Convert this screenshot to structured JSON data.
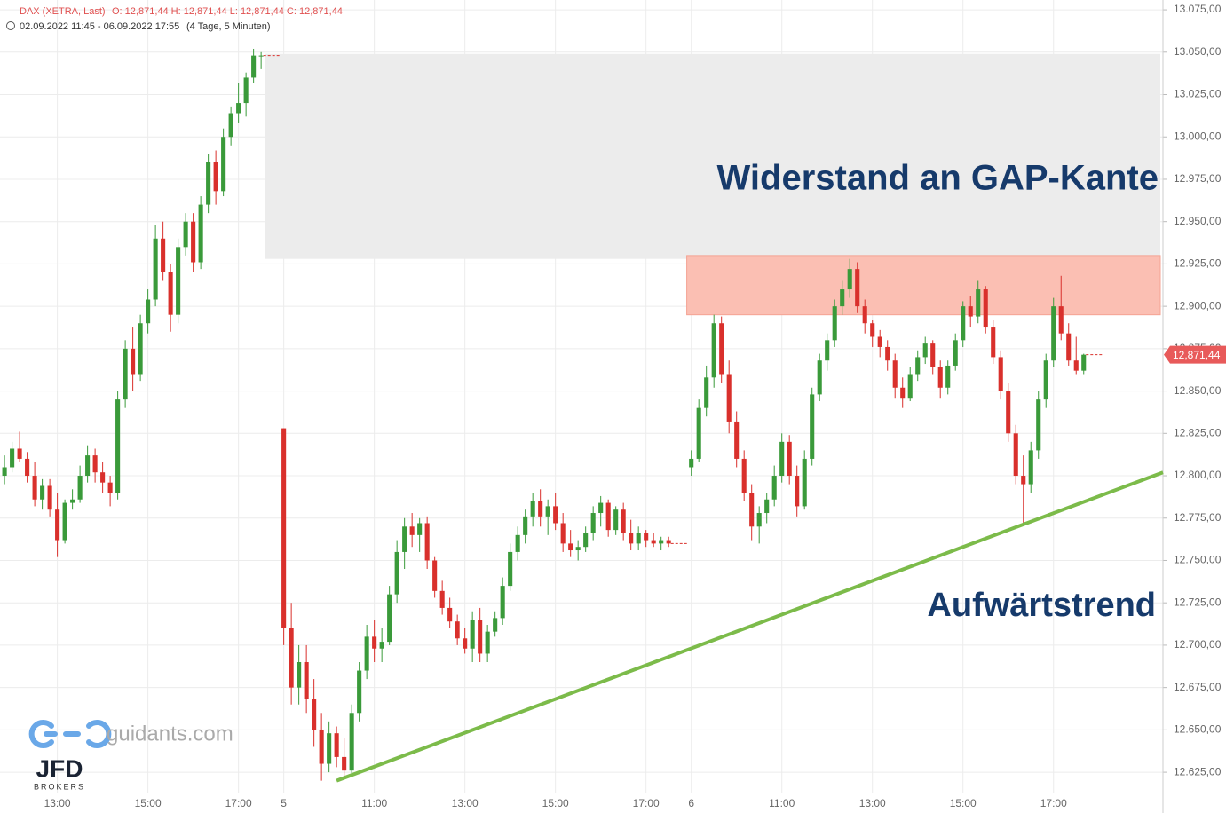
{
  "header": {
    "instrument": "DAX (XETRA, Last)",
    "ohlc": "O: 12,871,44  H: 12,871,44  L: 12,871,44  C: 12,871,44",
    "range": "02.09.2022 11:45 - 06.09.2022 17:55",
    "period": "(4 Tage, 5 Minuten)"
  },
  "branding": {
    "site": "guidants.com",
    "broker": "JFD",
    "broker_sub": "BROKERS"
  },
  "chart_data": {
    "type": "candlestick",
    "up_color": "#3a9a3a",
    "down_color": "#d9302c",
    "grid": true,
    "xlim": [
      -0.6,
      153.5
    ],
    "ylim": [
      12613,
      13080.8
    ],
    "xticks": [
      {
        "value": 7,
        "label": "13:00"
      },
      {
        "value": 19,
        "label": "15:00"
      },
      {
        "value": 31,
        "label": "17:00"
      },
      {
        "value": 37,
        "label": "5"
      },
      {
        "value": 49,
        "label": "11:00"
      },
      {
        "value": 61,
        "label": "13:00"
      },
      {
        "value": 73,
        "label": "15:00"
      },
      {
        "value": 85,
        "label": "17:00"
      },
      {
        "value": 91,
        "label": "6"
      },
      {
        "value": 103,
        "label": "11:00"
      },
      {
        "value": 115,
        "label": "13:00"
      },
      {
        "value": 127,
        "label": "15:00"
      },
      {
        "value": 139,
        "label": "17:00"
      }
    ],
    "yticks": [
      {
        "value": 12625,
        "label": "12.625,00"
      },
      {
        "value": 12650,
        "label": "12.650,00"
      },
      {
        "value": 12675,
        "label": "12.675,00"
      },
      {
        "value": 12700,
        "label": "12.700,00"
      },
      {
        "value": 12725,
        "label": "12.725,00"
      },
      {
        "value": 12750,
        "label": "12.750,00"
      },
      {
        "value": 12775,
        "label": "12.775,00"
      },
      {
        "value": 12800,
        "label": "12.800,00"
      },
      {
        "value": 12825,
        "label": "12.825,00"
      },
      {
        "value": 12850,
        "label": "12.850,00"
      },
      {
        "value": 12875,
        "label": "12.875,00"
      },
      {
        "value": 12900,
        "label": "12.900,00"
      },
      {
        "value": 12925,
        "label": "12.925,00"
      },
      {
        "value": 12950,
        "label": "12.950,00"
      },
      {
        "value": 12975,
        "label": "12.975,00"
      },
      {
        "value": 13000,
        "label": "13.000,00"
      },
      {
        "value": 13025,
        "label": "13.025,00"
      },
      {
        "value": 13050,
        "label": "13.050,00"
      },
      {
        "value": 13075,
        "label": "13.075,00"
      }
    ],
    "last_price": {
      "value": 12871.44,
      "label": "12,871,44"
    },
    "zones": [
      {
        "x_from": 34.5,
        "from": 12928,
        "to": 13049,
        "color": "#ececec"
      },
      {
        "x_from": 90.4,
        "from": 12895,
        "to": 12930,
        "color": "#fbbfb3"
      }
    ],
    "trendline": {
      "x": [
        44,
        153.5
      ],
      "y": [
        12620,
        12802
      ],
      "color": "#7cbb4a"
    },
    "annotations": [
      "Widerstand an GAP-Kante",
      "Aufwärtstrend"
    ],
    "candles": [
      [
        12800,
        12812,
        12795,
        12805
      ],
      [
        12805,
        12820,
        12802,
        12816
      ],
      [
        12816,
        12826,
        12808,
        12810
      ],
      [
        12810,
        12814,
        12796,
        12800
      ],
      [
        12800,
        12808,
        12782,
        12786
      ],
      [
        12786,
        12798,
        12780,
        12794
      ],
      [
        12794,
        12798,
        12776,
        12780
      ],
      [
        12780,
        12790,
        12752,
        12762
      ],
      [
        12762,
        12786,
        12760,
        12784
      ],
      [
        12784,
        12792,
        12780,
        12786
      ],
      [
        12786,
        12806,
        12784,
        12800
      ],
      [
        12800,
        12818,
        12796,
        12812
      ],
      [
        12812,
        12816,
        12796,
        12802
      ],
      [
        12802,
        12808,
        12790,
        12796
      ],
      [
        12796,
        12800,
        12782,
        12790
      ],
      [
        12790,
        12850,
        12786,
        12845
      ],
      [
        12845,
        12880,
        12840,
        12875
      ],
      [
        12875,
        12888,
        12850,
        12860
      ],
      [
        12860,
        12895,
        12856,
        12890
      ],
      [
        12890,
        12910,
        12884,
        12904
      ],
      [
        12904,
        12948,
        12900,
        12940
      ],
      [
        12940,
        12950,
        12915,
        12920
      ],
      [
        12920,
        12925,
        12885,
        12895
      ],
      [
        12895,
        12940,
        12890,
        12935
      ],
      [
        12935,
        12955,
        12930,
        12950
      ],
      [
        12950,
        12955,
        12920,
        12926
      ],
      [
        12926,
        12965,
        12922,
        12960
      ],
      [
        12960,
        12990,
        12955,
        12985
      ],
      [
        12985,
        12992,
        12960,
        12968
      ],
      [
        12968,
        13005,
        12965,
        13000
      ],
      [
        13000,
        13018,
        12995,
        13014
      ],
      [
        13014,
        13032,
        13008,
        13020
      ],
      [
        13020,
        13038,
        13012,
        13035
      ],
      [
        13035,
        13052,
        13032,
        13048
      ],
      [
        13048,
        13050,
        13040,
        13048
      ],
      null,
      null,
      [
        12828,
        12828,
        12700,
        12710
      ],
      [
        12710,
        12725,
        12665,
        12675
      ],
      [
        12675,
        12700,
        12665,
        12690
      ],
      [
        12690,
        12700,
        12660,
        12668
      ],
      [
        12668,
        12680,
        12640,
        12650
      ],
      [
        12650,
        12660,
        12620,
        12630
      ],
      [
        12630,
        12655,
        12625,
        12648
      ],
      [
        12648,
        12652,
        12628,
        12634
      ],
      [
        12634,
        12645,
        12622,
        12626
      ],
      [
        12626,
        12665,
        12624,
        12660
      ],
      [
        12660,
        12690,
        12655,
        12685
      ],
      [
        12685,
        12712,
        12680,
        12705
      ],
      [
        12705,
        12715,
        12690,
        12698
      ],
      [
        12698,
        12710,
        12690,
        12702
      ],
      [
        12702,
        12735,
        12700,
        12730
      ],
      [
        12730,
        12762,
        12725,
        12755
      ],
      [
        12755,
        12775,
        12745,
        12770
      ],
      [
        12770,
        12778,
        12758,
        12765
      ],
      [
        12765,
        12775,
        12755,
        12772
      ],
      [
        12772,
        12776,
        12745,
        12750
      ],
      [
        12750,
        12752,
        12728,
        12732
      ],
      [
        12732,
        12738,
        12718,
        12722
      ],
      [
        12722,
        12728,
        12710,
        12714
      ],
      [
        12714,
        12718,
        12700,
        12704
      ],
      [
        12704,
        12710,
        12695,
        12698
      ],
      [
        12698,
        12720,
        12690,
        12715
      ],
      [
        12715,
        12722,
        12690,
        12695
      ],
      [
        12695,
        12712,
        12690,
        12708
      ],
      [
        12708,
        12720,
        12705,
        12716
      ],
      [
        12716,
        12740,
        12712,
        12735
      ],
      [
        12735,
        12760,
        12732,
        12755
      ],
      [
        12755,
        12770,
        12750,
        12765
      ],
      [
        12765,
        12780,
        12760,
        12776
      ],
      [
        12776,
        12790,
        12770,
        12785
      ],
      [
        12785,
        12792,
        12770,
        12776
      ],
      [
        12776,
        12786,
        12765,
        12782
      ],
      [
        12782,
        12790,
        12768,
        12772
      ],
      [
        12772,
        12778,
        12755,
        12760
      ],
      [
        12760,
        12768,
        12752,
        12756
      ],
      [
        12756,
        12762,
        12750,
        12758
      ],
      [
        12758,
        12770,
        12755,
        12766
      ],
      [
        12766,
        12782,
        12762,
        12778
      ],
      [
        12778,
        12788,
        12770,
        12784
      ],
      [
        12784,
        12786,
        12764,
        12768
      ],
      [
        12768,
        12782,
        12765,
        12780
      ],
      [
        12780,
        12784,
        12762,
        12766
      ],
      [
        12766,
        12774,
        12756,
        12760
      ],
      [
        12760,
        12770,
        12756,
        12766
      ],
      [
        12766,
        12768,
        12758,
        12762
      ],
      [
        12762,
        12766,
        12758,
        12760
      ],
      [
        12760,
        12764,
        12756,
        12762
      ],
      [
        12762,
        12764,
        12758,
        12760
      ],
      null,
      null,
      [
        12805,
        12815,
        12800,
        12810
      ],
      [
        12810,
        12845,
        12808,
        12840
      ],
      [
        12840,
        12865,
        12835,
        12858
      ],
      [
        12858,
        12895,
        12852,
        12890
      ],
      [
        12890,
        12894,
        12855,
        12860
      ],
      [
        12860,
        12868,
        12825,
        12832
      ],
      [
        12832,
        12838,
        12805,
        12810
      ],
      [
        12810,
        12815,
        12785,
        12790
      ],
      [
        12790,
        12795,
        12762,
        12770
      ],
      [
        12770,
        12782,
        12760,
        12778
      ],
      [
        12778,
        12790,
        12772,
        12786
      ],
      [
        12786,
        12806,
        12782,
        12800
      ],
      [
        12800,
        12825,
        12796,
        12820
      ],
      [
        12820,
        12824,
        12795,
        12800
      ],
      [
        12800,
        12806,
        12776,
        12782
      ],
      [
        12782,
        12815,
        12780,
        12810
      ],
      [
        12810,
        12852,
        12806,
        12848
      ],
      [
        12848,
        12872,
        12844,
        12868
      ],
      [
        12868,
        12884,
        12862,
        12880
      ],
      [
        12880,
        12904,
        12876,
        12900
      ],
      [
        12900,
        12915,
        12895,
        12910
      ],
      [
        12910,
        12928,
        12905,
        12922
      ],
      [
        12922,
        12926,
        12896,
        12900
      ],
      [
        12900,
        12904,
        12884,
        12890
      ],
      [
        12890,
        12892,
        12876,
        12882
      ],
      [
        12882,
        12886,
        12870,
        12876
      ],
      [
        12876,
        12880,
        12862,
        12868
      ],
      [
        12868,
        12872,
        12846,
        12852
      ],
      [
        12852,
        12858,
        12840,
        12846
      ],
      [
        12846,
        12864,
        12844,
        12860
      ],
      [
        12860,
        12874,
        12856,
        12870
      ],
      [
        12870,
        12882,
        12866,
        12878
      ],
      [
        12878,
        12880,
        12860,
        12864
      ],
      [
        12864,
        12868,
        12846,
        12852
      ],
      [
        12852,
        12868,
        12848,
        12865
      ],
      [
        12865,
        12884,
        12862,
        12880
      ],
      [
        12880,
        12903,
        12876,
        12900
      ],
      [
        12900,
        12906,
        12888,
        12894
      ],
      [
        12894,
        12915,
        12890,
        12910
      ],
      [
        12910,
        12912,
        12884,
        12888
      ],
      [
        12888,
        12892,
        12866,
        12870
      ],
      [
        12870,
        12874,
        12845,
        12850
      ],
      [
        12850,
        12855,
        12820,
        12825
      ],
      [
        12825,
        12830,
        12795,
        12800
      ],
      [
        12800,
        12812,
        12772,
        12795
      ],
      [
        12795,
        12820,
        12790,
        12815
      ],
      [
        12815,
        12850,
        12810,
        12845
      ],
      [
        12845,
        12872,
        12840,
        12868
      ],
      [
        12868,
        12905,
        12864,
        12900
      ],
      [
        12900,
        12918,
        12880,
        12884
      ],
      [
        12884,
        12890,
        12865,
        12868
      ],
      [
        12868,
        12882,
        12860,
        12862
      ],
      [
        12862,
        12872,
        12860,
        12871.44
      ]
    ]
  }
}
